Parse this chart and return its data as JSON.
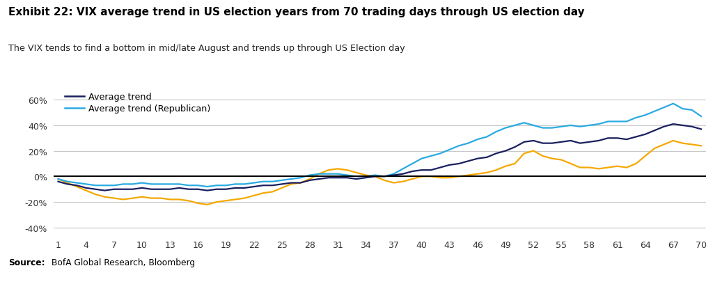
{
  "title": "Exhibit 22: VIX average trend in US election years from 70 trading days through US election day",
  "subtitle": "The VIX tends to find a bottom in mid/late August and trends up through US Election day",
  "source_bold": "Source:",
  "source_rest": " BofA Global Research, Bloomberg",
  "x_ticks": [
    1,
    4,
    7,
    10,
    13,
    16,
    19,
    22,
    25,
    28,
    31,
    34,
    37,
    40,
    43,
    46,
    49,
    52,
    55,
    58,
    61,
    64,
    67,
    70
  ],
  "ylim": [
    -0.45,
    0.7
  ],
  "yticks": [
    -0.4,
    -0.2,
    0.0,
    0.2,
    0.4,
    0.6
  ],
  "colors": {
    "avg_trend": "#1a1f5e",
    "avg_repub": "#29aae1",
    "third": "#f5a800",
    "zero_line": "#000000",
    "grid": "#c8c8c8",
    "bg": "#ffffff"
  },
  "avg_trend": [
    -0.04,
    -0.06,
    -0.07,
    -0.09,
    -0.1,
    -0.11,
    -0.1,
    -0.1,
    -0.1,
    -0.09,
    -0.1,
    -0.1,
    -0.1,
    -0.09,
    -0.1,
    -0.1,
    -0.11,
    -0.1,
    -0.1,
    -0.09,
    -0.09,
    -0.08,
    -0.07,
    -0.07,
    -0.06,
    -0.05,
    -0.05,
    -0.03,
    -0.02,
    -0.01,
    -0.01,
    -0.01,
    -0.02,
    -0.01,
    0.0,
    0.0,
    0.01,
    0.02,
    0.04,
    0.05,
    0.05,
    0.07,
    0.09,
    0.1,
    0.12,
    0.14,
    0.15,
    0.18,
    0.2,
    0.23,
    0.27,
    0.28,
    0.26,
    0.26,
    0.27,
    0.28,
    0.26,
    0.27,
    0.28,
    0.3,
    0.3,
    0.29,
    0.31,
    0.33,
    0.36,
    0.39,
    0.41,
    0.4,
    0.39,
    0.37
  ],
  "avg_repub": [
    -0.02,
    -0.04,
    -0.05,
    -0.06,
    -0.07,
    -0.07,
    -0.07,
    -0.06,
    -0.06,
    -0.05,
    -0.06,
    -0.06,
    -0.06,
    -0.06,
    -0.07,
    -0.07,
    -0.08,
    -0.07,
    -0.07,
    -0.06,
    -0.06,
    -0.05,
    -0.04,
    -0.04,
    -0.03,
    -0.02,
    -0.01,
    0.01,
    0.02,
    0.02,
    0.02,
    0.01,
    0.0,
    0.0,
    0.01,
    0.0,
    0.02,
    0.06,
    0.1,
    0.14,
    0.16,
    0.18,
    0.21,
    0.24,
    0.26,
    0.29,
    0.31,
    0.35,
    0.38,
    0.4,
    0.42,
    0.4,
    0.38,
    0.38,
    0.39,
    0.4,
    0.39,
    0.4,
    0.41,
    0.43,
    0.43,
    0.43,
    0.46,
    0.48,
    0.51,
    0.54,
    0.57,
    0.53,
    0.52,
    0.47
  ],
  "third": [
    -0.02,
    -0.05,
    -0.08,
    -0.11,
    -0.14,
    -0.16,
    -0.17,
    -0.18,
    -0.17,
    -0.16,
    -0.17,
    -0.17,
    -0.18,
    -0.18,
    -0.19,
    -0.21,
    -0.22,
    -0.2,
    -0.19,
    -0.18,
    -0.17,
    -0.15,
    -0.13,
    -0.12,
    -0.09,
    -0.06,
    -0.05,
    -0.02,
    0.02,
    0.05,
    0.06,
    0.05,
    0.03,
    0.01,
    0.0,
    -0.03,
    -0.05,
    -0.04,
    -0.02,
    0.0,
    0.0,
    -0.01,
    -0.01,
    0.0,
    0.01,
    0.02,
    0.03,
    0.05,
    0.08,
    0.1,
    0.18,
    0.2,
    0.16,
    0.14,
    0.13,
    0.1,
    0.07,
    0.07,
    0.06,
    0.07,
    0.08,
    0.07,
    0.1,
    0.16,
    0.22,
    0.25,
    0.28,
    0.26,
    0.25,
    0.24
  ]
}
